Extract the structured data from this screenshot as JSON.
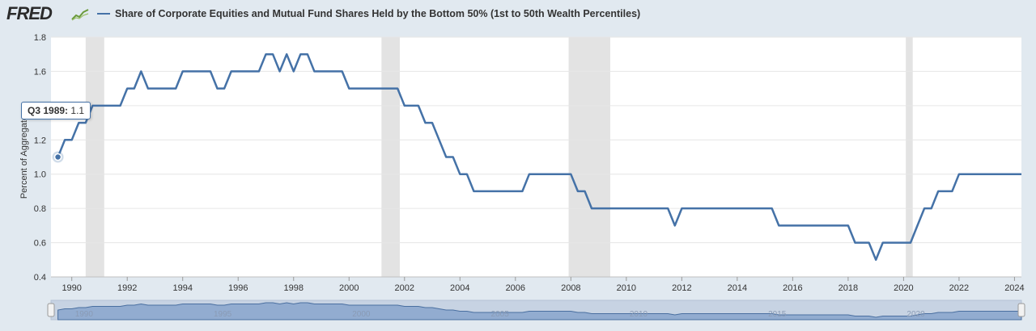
{
  "header": {
    "logo_text": "FRED",
    "logo_icon": "trend-line-icon"
  },
  "chart_data": {
    "type": "line",
    "title": "Share of Corporate Equities and Mutual Fund Shares Held by the Bottom 50% (1st to 50th Wealth Percentiles)",
    "xlabel": "",
    "ylabel": "Percent of Aggregate",
    "ylim": [
      0.4,
      1.8
    ],
    "xlim": [
      1989.25,
      2024.25
    ],
    "y_ticks": [
      "0.4",
      "0.6",
      "0.8",
      "1.0",
      "1.2",
      "1.4",
      "1.6",
      "1.8"
    ],
    "x_ticks": [
      "1990",
      "1992",
      "1994",
      "1996",
      "1998",
      "2000",
      "2002",
      "2004",
      "2006",
      "2008",
      "2010",
      "2012",
      "2014",
      "2016",
      "2018",
      "2020",
      "2022",
      "2024"
    ],
    "navigator_ticks": [
      "1990",
      "1995",
      "2000",
      "2005",
      "2010",
      "2015",
      "2020"
    ],
    "recessions": [
      [
        1990.5,
        1991.17
      ],
      [
        2001.17,
        2001.83
      ],
      [
        2007.92,
        2009.42
      ],
      [
        2020.08,
        2020.33
      ]
    ],
    "series": [
      {
        "name": "Share of Corporate Equities and Mutual Fund Shares Held by the Bottom 50% (1st to 50th Wealth Percentiles)",
        "color": "#4572a7",
        "x": [
          1989.5,
          1989.75,
          1990.0,
          1990.25,
          1990.5,
          1990.75,
          1991.0,
          1991.75,
          1992.0,
          1992.25,
          1992.5,
          1992.75,
          1993.0,
          1993.5,
          1993.75,
          1994.0,
          1994.5,
          1995.0,
          1995.25,
          1995.5,
          1995.75,
          1996.0,
          1996.5,
          1996.75,
          1997.0,
          1997.25,
          1997.5,
          1997.75,
          1998.0,
          1998.25,
          1998.5,
          1998.75,
          1999.0,
          1999.5,
          1999.75,
          2000.0,
          2000.5,
          2001.0,
          2001.5,
          2001.75,
          2002.0,
          2002.25,
          2002.5,
          2002.75,
          2003.0,
          2003.25,
          2003.5,
          2003.75,
          2004.0,
          2004.25,
          2004.5,
          2005.0,
          2005.5,
          2006.0,
          2006.25,
          2006.5,
          2007.0,
          2007.5,
          2007.75,
          2008.0,
          2008.25,
          2008.5,
          2008.75,
          2009.0,
          2010.0,
          2011.0,
          2011.25,
          2011.5,
          2011.75,
          2012.0,
          2013.0,
          2014.0,
          2015.0,
          2015.25,
          2015.5,
          2016.0,
          2017.0,
          2017.5,
          2017.75,
          2018.0,
          2018.25,
          2018.5,
          2018.75,
          2019.0,
          2019.25,
          2019.5,
          2019.75,
          2020.0,
          2020.25,
          2020.5,
          2020.75,
          2021.0,
          2021.25,
          2021.5,
          2021.75,
          2022.0,
          2022.25,
          2023.0,
          2024.0,
          2024.25
        ],
        "values": [
          1.1,
          1.2,
          1.2,
          1.3,
          1.3,
          1.4,
          1.4,
          1.4,
          1.5,
          1.5,
          1.6,
          1.5,
          1.5,
          1.5,
          1.5,
          1.6,
          1.6,
          1.6,
          1.5,
          1.5,
          1.6,
          1.6,
          1.6,
          1.6,
          1.7,
          1.7,
          1.6,
          1.7,
          1.6,
          1.7,
          1.7,
          1.6,
          1.6,
          1.6,
          1.6,
          1.5,
          1.5,
          1.5,
          1.5,
          1.5,
          1.4,
          1.4,
          1.4,
          1.3,
          1.3,
          1.2,
          1.1,
          1.1,
          1.0,
          1.0,
          0.9,
          0.9,
          0.9,
          0.9,
          0.9,
          1.0,
          1.0,
          1.0,
          1.0,
          1.0,
          0.9,
          0.9,
          0.8,
          0.8,
          0.8,
          0.8,
          0.8,
          0.8,
          0.7,
          0.8,
          0.8,
          0.8,
          0.8,
          0.8,
          0.7,
          0.7,
          0.7,
          0.7,
          0.7,
          0.7,
          0.6,
          0.6,
          0.6,
          0.5,
          0.6,
          0.6,
          0.6,
          0.6,
          0.6,
          0.7,
          0.8,
          0.8,
          0.9,
          0.9,
          0.9,
          1.0,
          1.0,
          1.0,
          1.0,
          1.0
        ]
      }
    ],
    "tooltip": {
      "label": "Q3 1989:",
      "value": "1.1"
    }
  }
}
